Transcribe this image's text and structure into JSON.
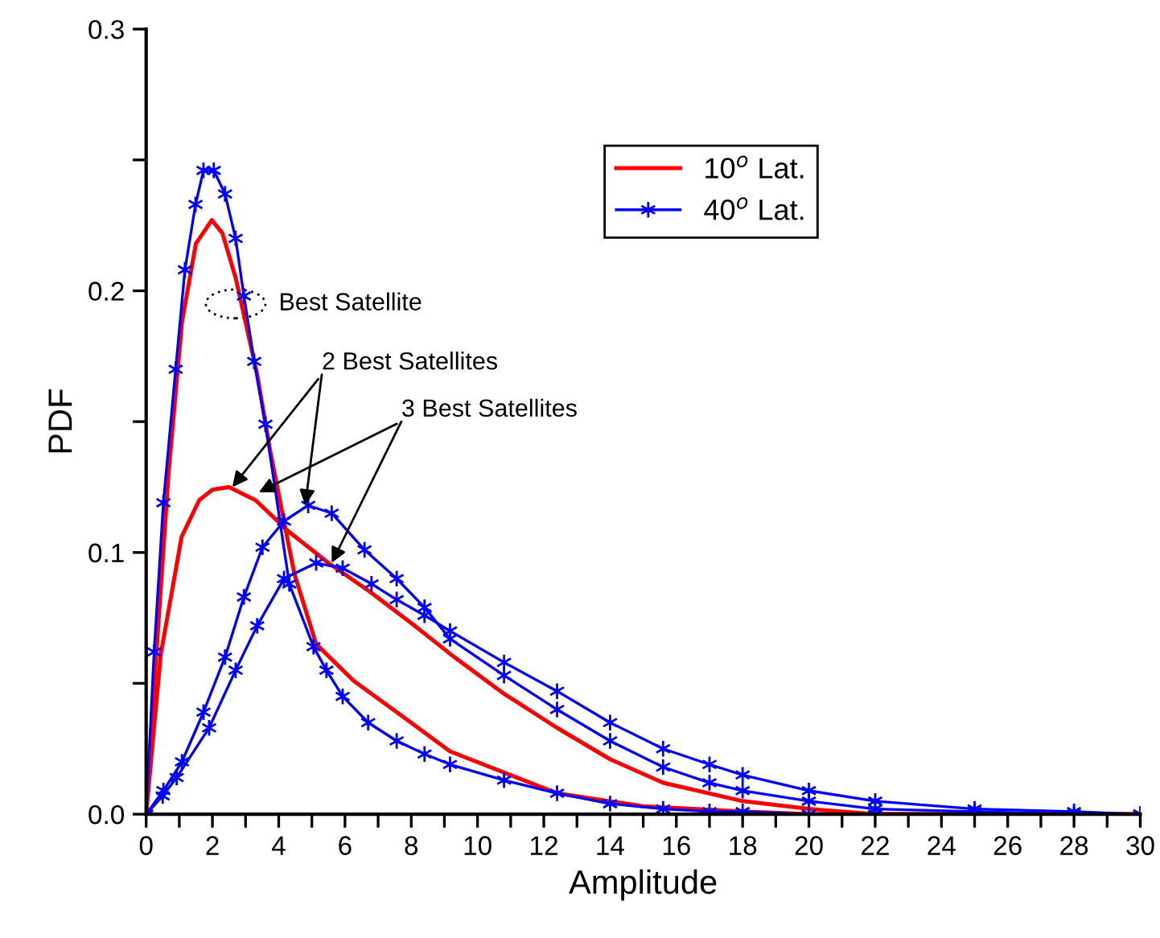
{
  "chart_data": {
    "type": "line",
    "xlabel": "Amplitude",
    "ylabel": "PDF",
    "xlim": [
      0,
      30
    ],
    "ylim": [
      0,
      0.3
    ],
    "xticks": [
      0,
      {
        "value": 1,
        "label": null
      },
      2,
      {
        "value": 3,
        "label": null
      },
      4,
      {
        "value": 5,
        "label": null
      },
      6,
      {
        "value": 7,
        "label": null
      },
      8,
      {
        "value": 9,
        "label": null
      },
      10,
      {
        "value": 11,
        "label": null
      },
      12,
      {
        "value": 13,
        "label": null
      },
      14,
      {
        "value": 15,
        "label": null
      },
      16,
      {
        "value": 17,
        "label": null
      },
      18,
      {
        "value": 19,
        "label": null
      },
      20,
      {
        "value": 21,
        "label": null
      },
      22,
      {
        "value": 23,
        "label": null
      },
      24,
      {
        "value": 25,
        "label": null
      },
      26,
      {
        "value": 27,
        "label": null
      },
      28,
      {
        "value": 29,
        "label": null
      },
      30
    ],
    "yticks": [
      {
        "value": 0,
        "label": "0.0"
      },
      {
        "value": 0.05,
        "label": null
      },
      {
        "value": 0.1,
        "label": "0.1"
      },
      {
        "value": 0.15,
        "label": null
      },
      {
        "value": 0.2,
        "label": "0.2"
      },
      {
        "value": 0.25,
        "label": null
      },
      {
        "value": 0.3,
        "label": "0.3"
      }
    ],
    "grid": false,
    "legend": "top right",
    "series": [
      {
        "name": "10$^{o}$ Lat.",
        "color": "#ff0000",
        "marker": "none",
        "x": [
          0,
          0.3,
          0.68,
          1.08,
          1.5,
          1.98,
          2.3,
          2.7,
          3.35,
          3.74,
          4.47,
          5.13,
          6.26,
          7.56,
          9.17,
          12.4,
          15,
          18,
          20,
          30
        ],
        "values": [
          0,
          0.06,
          0.131,
          0.188,
          0.218,
          0.227,
          0.222,
          0.205,
          0.168,
          0.139,
          0.092,
          0.065,
          0.051,
          0.039,
          0.024,
          0.008,
          0.003,
          0.001,
          0,
          0
        ]
      },
      {
        "color": "#ff0000",
        "marker": "none",
        "x": [
          0,
          0.44,
          1.07,
          1.6,
          2.0,
          2.5,
          3.3,
          4.3,
          5.5,
          6.75,
          8,
          9.2,
          10.8,
          12.4,
          14,
          15.6,
          18,
          20,
          22,
          30
        ],
        "values": [
          0,
          0.061,
          0.106,
          0.12,
          0.124,
          0.125,
          0.12,
          0.108,
          0.096,
          0.085,
          0.073,
          0.061,
          0.046,
          0.033,
          0.021,
          0.012,
          0.005,
          0.002,
          0,
          0
        ]
      },
      {
        "name": "40$^{o}$ Lat.",
        "color": "#0000ff",
        "marker": "cross",
        "x": [
          0,
          0.24,
          0.52,
          0.89,
          1.17,
          1.49,
          1.73,
          2.04,
          2.38,
          2.7,
          2.95,
          3.26,
          3.6,
          4.32,
          5.05,
          5.44,
          5.93,
          6.7,
          7.56,
          8.4,
          9.17,
          10.8,
          12.4,
          14,
          15.6,
          17,
          18,
          20,
          22,
          25,
          30
        ],
        "values": [
          0,
          0.062,
          0.119,
          0.17,
          0.208,
          0.233,
          0.246,
          0.246,
          0.237,
          0.22,
          0.198,
          0.173,
          0.149,
          0.088,
          0.064,
          0.055,
          0.045,
          0.035,
          0.028,
          0.023,
          0.019,
          0.013,
          0.008,
          0.004,
          0.002,
          0.001,
          0.001,
          0,
          0,
          0,
          0
        ]
      },
      {
        "color": "#0000ff",
        "marker": "cross",
        "x": [
          0,
          0.52,
          1.08,
          1.73,
          2.38,
          2.95,
          3.51,
          4.16,
          4.89,
          5.6,
          6.59,
          7.56,
          8.4,
          9.17,
          10.8,
          12.4,
          14,
          15.6,
          17,
          18,
          20,
          22,
          25,
          28,
          30
        ],
        "values": [
          0,
          0.009,
          0.02,
          0.039,
          0.06,
          0.083,
          0.102,
          0.112,
          0.118,
          0.115,
          0.101,
          0.09,
          0.079,
          0.067,
          0.053,
          0.04,
          0.028,
          0.018,
          0.012,
          0.009,
          0.005,
          0.002,
          0.001,
          0,
          0
        ]
      },
      {
        "color": "#0000ff",
        "marker": "cross",
        "x": [
          0,
          0.5,
          0.92,
          1.9,
          2.7,
          3.35,
          4.16,
          5.13,
          5.93,
          6.8,
          7.56,
          8.4,
          9.17,
          10.8,
          12.4,
          14,
          15.6,
          17,
          18,
          20,
          22,
          25,
          28,
          30
        ],
        "values": [
          0,
          0.007,
          0.014,
          0.033,
          0.055,
          0.072,
          0.09,
          0.096,
          0.094,
          0.088,
          0.082,
          0.076,
          0.07,
          0.058,
          0.047,
          0.035,
          0.025,
          0.019,
          0.015,
          0.009,
          0.005,
          0.002,
          0.001,
          0
        ]
      }
    ],
    "annotations": [
      {
        "text": "Best Satellite",
        "x": 2.7,
        "y": 0.195
      },
      {
        "text": "2 Best Satellites",
        "x": 2.6,
        "y": 0.125
      },
      {
        "text": "3 Best Satellites",
        "x": 3.4,
        "y": 0.123
      }
    ]
  }
}
